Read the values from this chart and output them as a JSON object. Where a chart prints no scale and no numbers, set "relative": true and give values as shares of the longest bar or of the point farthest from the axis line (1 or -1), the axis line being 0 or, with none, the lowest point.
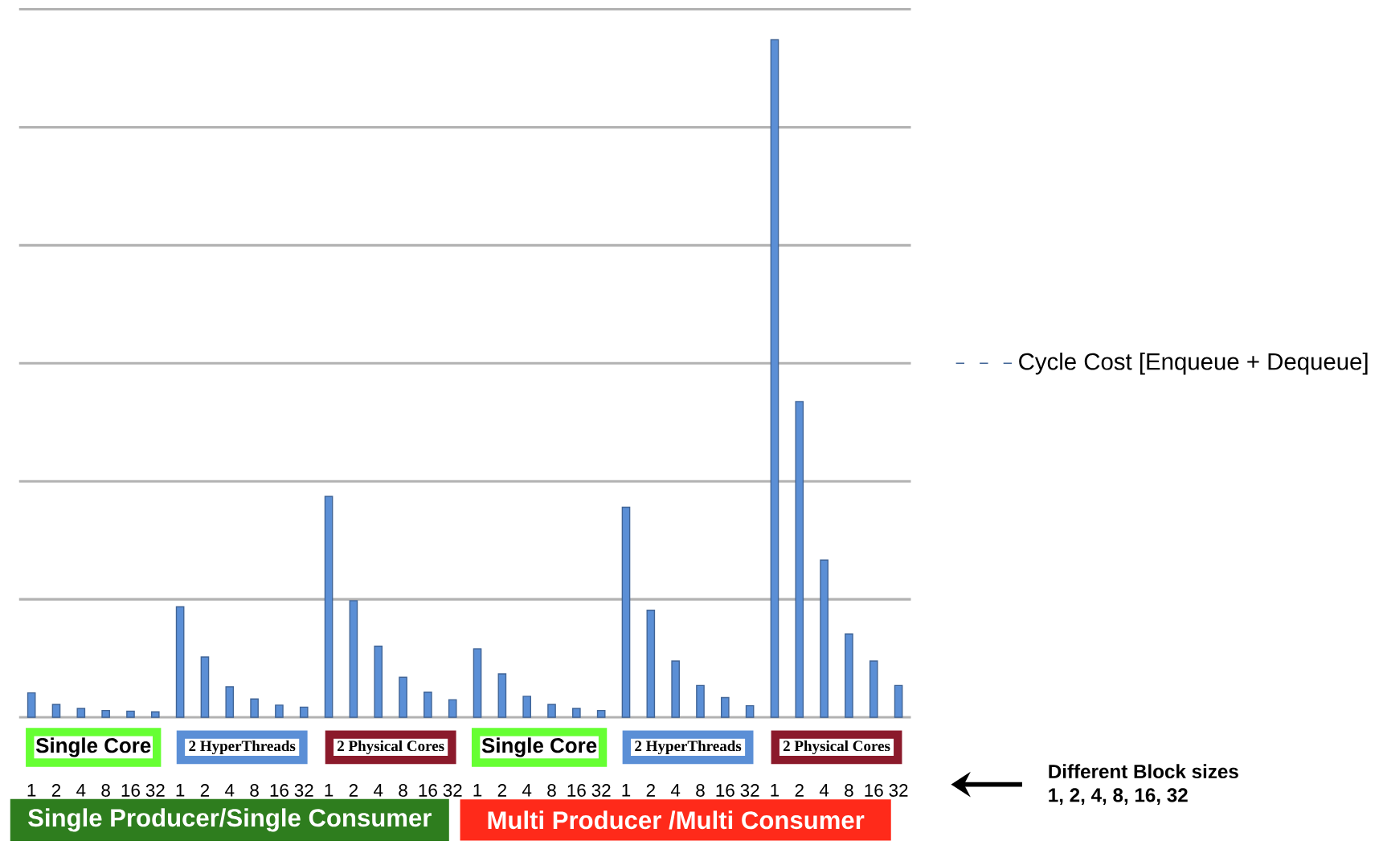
{
  "chart_data": {
    "type": "bar",
    "relative": true,
    "grid": "y",
    "legend": "right",
    "categories": [
      "1",
      "2",
      "4",
      "8",
      "16",
      "32",
      "1",
      "2",
      "4",
      "8",
      "16",
      "32",
      "1",
      "2",
      "4",
      "8",
      "16",
      "32",
      "1",
      "2",
      "4",
      "8",
      "16",
      "32",
      "1",
      "2",
      "4",
      "8",
      "16",
      "32",
      "1",
      "2",
      "4",
      "8",
      "16",
      "32"
    ],
    "series": [
      {
        "name": "Cycle Cost [Enqueue + Dequeue]",
        "color": "#5b8fd6",
        "values": [
          0.036,
          0.019,
          0.013,
          0.01,
          0.009,
          0.008,
          0.163,
          0.089,
          0.045,
          0.027,
          0.018,
          0.015,
          0.326,
          0.172,
          0.105,
          0.059,
          0.037,
          0.026,
          0.101,
          0.064,
          0.031,
          0.019,
          0.013,
          0.01,
          0.31,
          0.158,
          0.083,
          0.047,
          0.029,
          0.017,
          1,
          0.466,
          0.232,
          0.123,
          0.083,
          0.047
        ]
      }
    ],
    "annotations": [
      "Single Core",
      "2 HyperThreads",
      "2 Physical Cores",
      "Single Core",
      "2 HyperThreads",
      "2 Physical Cores",
      "Single Producer/Single Consumer",
      "Multi Producer /Multi Consumer",
      "Different Block sizes",
      "1, 2, 4, 8, 16, 32"
    ]
  }
}
